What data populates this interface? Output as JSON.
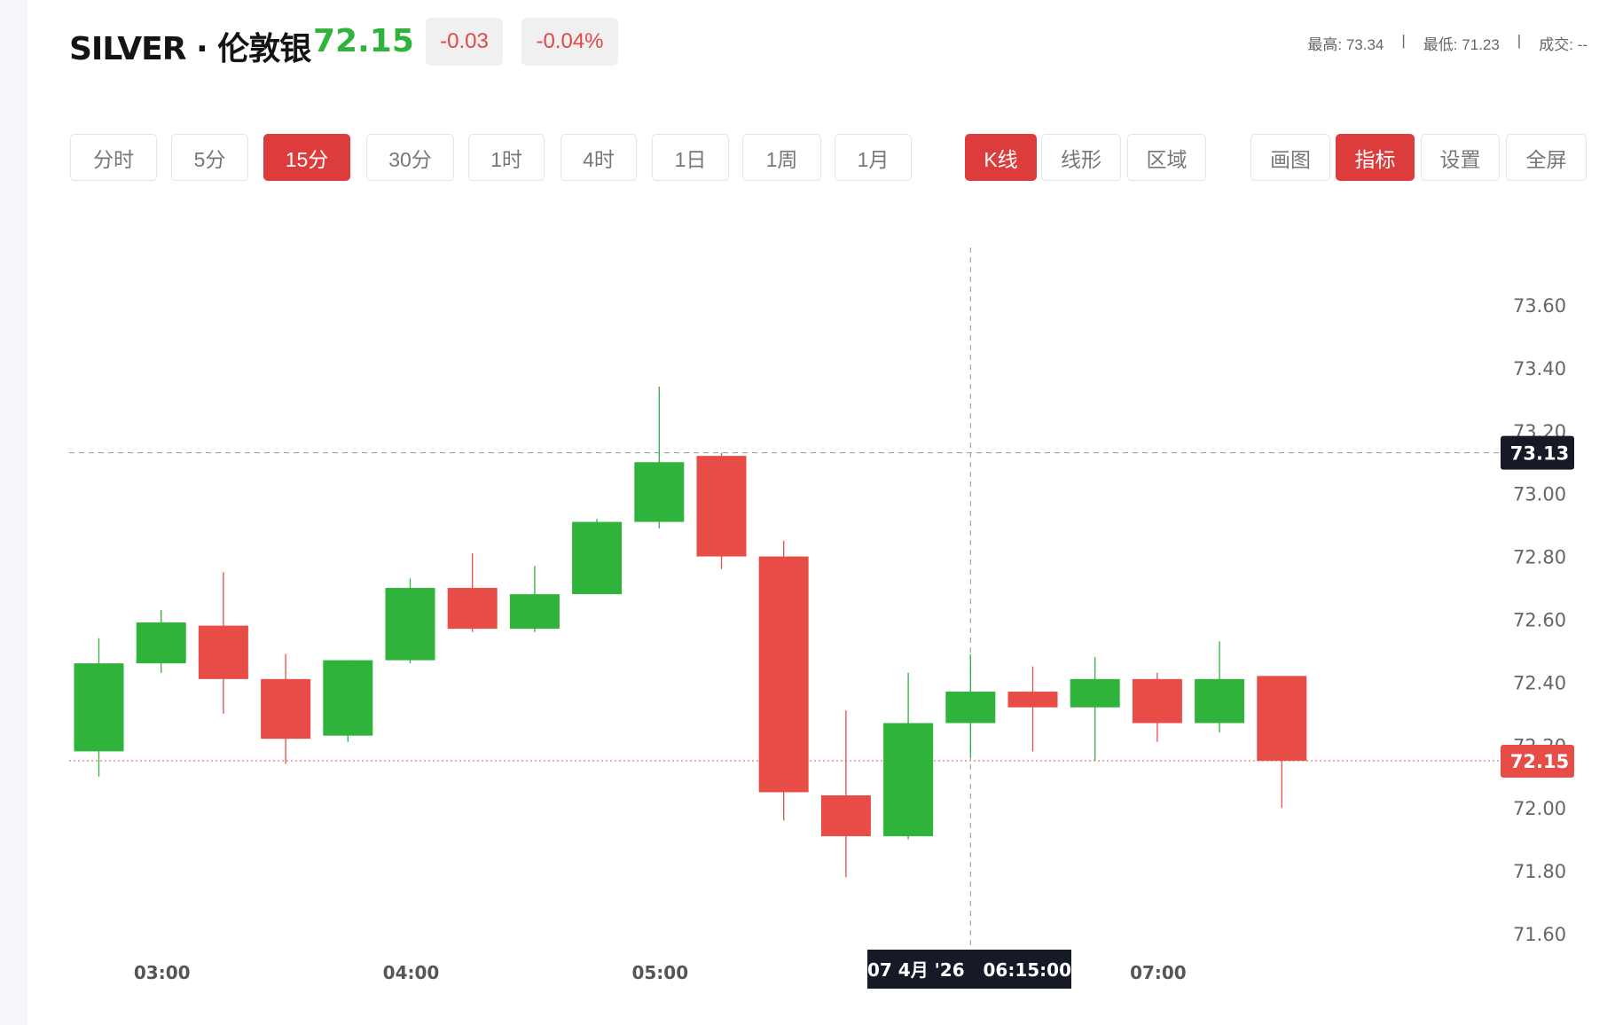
{
  "header": {
    "title": "SILVER · 伦敦银",
    "last_price": "72.15",
    "change": "-0.03",
    "change_pct": "-0.04%",
    "stats": [
      {
        "label": "最高: 73.34"
      },
      {
        "label": "最低: 71.23"
      },
      {
        "label": "成交: --"
      }
    ],
    "separator": "|"
  },
  "periods": [
    {
      "label": "分时",
      "active": false
    },
    {
      "label": "5分",
      "active": false
    },
    {
      "label": "15分",
      "active": true
    },
    {
      "label": "30分",
      "active": false
    },
    {
      "label": "1时",
      "active": false
    },
    {
      "label": "4时",
      "active": false
    },
    {
      "label": "1日",
      "active": false
    },
    {
      "label": "1周",
      "active": false
    },
    {
      "label": "1月",
      "active": false
    }
  ],
  "chart_types": [
    {
      "label": "K线",
      "active": true
    },
    {
      "label": "线形",
      "active": false
    },
    {
      "label": "区域",
      "active": false
    }
  ],
  "tools": [
    {
      "label": "画图",
      "active": false
    },
    {
      "label": "指标",
      "active": true
    },
    {
      "label": "设置",
      "active": false
    },
    {
      "label": "全屏",
      "active": false
    }
  ],
  "colors": {
    "up": "#2fb33a",
    "down": "#e84c47",
    "accent": "#dc3c3c",
    "crosshair_label": "#151a26"
  },
  "chart_data": {
    "type": "candlestick",
    "interval": "15分",
    "ylim": [
      71.6,
      73.6
    ],
    "yticks": [
      "73.60",
      "73.40",
      "73.20",
      "73.00",
      "72.80",
      "72.60",
      "72.40",
      "72.20",
      "72.00",
      "71.80",
      "71.60"
    ],
    "xticks": [
      {
        "label": "03:00",
        "index": 1
      },
      {
        "label": "04:00",
        "index": 5
      },
      {
        "label": "05:00",
        "index": 9
      },
      {
        "label": "07:00",
        "index": 17
      }
    ],
    "candles": [
      {
        "t": "02:45",
        "o": 72.18,
        "h": 72.54,
        "l": 72.1,
        "c": 72.46
      },
      {
        "t": "03:00",
        "o": 72.46,
        "h": 72.63,
        "l": 72.43,
        "c": 72.59
      },
      {
        "t": "03:15",
        "o": 72.58,
        "h": 72.75,
        "l": 72.3,
        "c": 72.41
      },
      {
        "t": "03:30",
        "o": 72.41,
        "h": 72.49,
        "l": 72.14,
        "c": 72.22
      },
      {
        "t": "03:45",
        "o": 72.23,
        "h": 72.47,
        "l": 72.21,
        "c": 72.47
      },
      {
        "t": "04:00",
        "o": 72.47,
        "h": 72.73,
        "l": 72.46,
        "c": 72.7
      },
      {
        "t": "04:15",
        "o": 72.7,
        "h": 72.81,
        "l": 72.56,
        "c": 72.57
      },
      {
        "t": "04:30",
        "o": 72.57,
        "h": 72.77,
        "l": 72.56,
        "c": 72.68
      },
      {
        "t": "04:45",
        "o": 72.68,
        "h": 72.92,
        "l": 72.68,
        "c": 72.91
      },
      {
        "t": "05:00",
        "o": 72.91,
        "h": 73.34,
        "l": 72.89,
        "c": 73.1
      },
      {
        "t": "05:15",
        "o": 73.12,
        "h": 73.13,
        "l": 72.76,
        "c": 72.8
      },
      {
        "t": "05:30",
        "o": 72.8,
        "h": 72.85,
        "l": 71.96,
        "c": 72.05
      },
      {
        "t": "05:45",
        "o": 72.04,
        "h": 72.31,
        "l": 71.78,
        "c": 71.91
      },
      {
        "t": "06:00",
        "o": 71.91,
        "h": 72.43,
        "l": 71.9,
        "c": 72.27
      },
      {
        "t": "06:15",
        "o": 72.27,
        "h": 72.49,
        "l": 72.16,
        "c": 72.37
      },
      {
        "t": "06:30",
        "o": 72.37,
        "h": 72.45,
        "l": 72.18,
        "c": 72.32
      },
      {
        "t": "06:45",
        "o": 72.32,
        "h": 72.48,
        "l": 72.15,
        "c": 72.41
      },
      {
        "t": "07:00",
        "o": 72.41,
        "h": 72.43,
        "l": 72.21,
        "c": 72.27
      },
      {
        "t": "07:15",
        "o": 72.27,
        "h": 72.53,
        "l": 72.24,
        "c": 72.41
      },
      {
        "t": "07:30",
        "o": 72.42,
        "h": 72.42,
        "l": 72.0,
        "c": 72.15
      }
    ],
    "crosshair": {
      "price": "73.13",
      "price_value": 73.13,
      "index": 14,
      "time_label": "07 4月 '26   06:15:00"
    },
    "last_price": {
      "label": "72.15",
      "value": 72.15
    }
  }
}
